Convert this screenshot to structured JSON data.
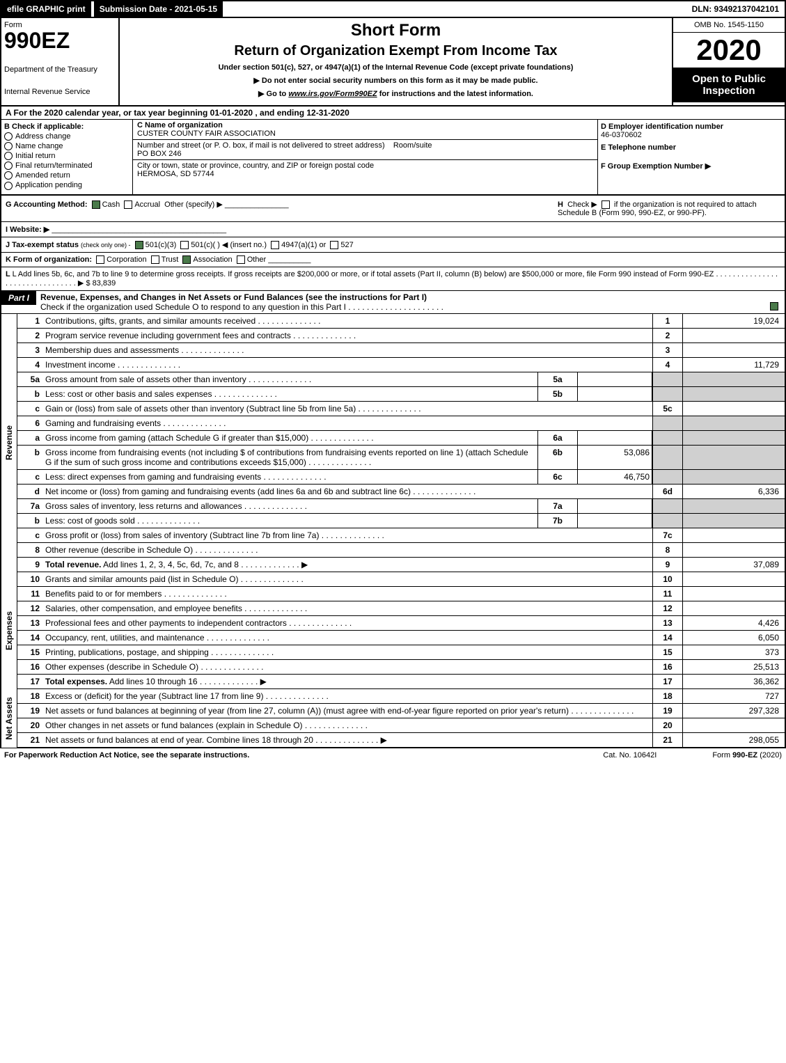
{
  "topbar": {
    "efile": "efile GRAPHIC print",
    "submission": "Submission Date - 2021-05-15",
    "dln": "DLN: 93492137042101"
  },
  "header": {
    "form_label": "Form",
    "form_num": "990EZ",
    "dept": "Department of the Treasury",
    "irs": "Internal Revenue Service",
    "short": "Short Form",
    "title": "Return of Organization Exempt From Income Tax",
    "under": "Under section 501(c), 527, or 4947(a)(1) of the Internal Revenue Code (except private foundations)",
    "do_not": "▶ Do not enter social security numbers on this form as it may be made public.",
    "go_to_pre": "▶ Go to ",
    "go_to_link": "www.irs.gov/Form990EZ",
    "go_to_post": " for instructions and the latest information.",
    "omb": "OMB No. 1545-1150",
    "year": "2020",
    "open": "Open to Public Inspection"
  },
  "section_a": "A  For the 2020 calendar year, or tax year beginning 01-01-2020  , and ending 12-31-2020",
  "col_b": {
    "header": "B  Check if applicable:",
    "items": [
      "Address change",
      "Name change",
      "Initial return",
      "Final return/terminated",
      "Amended return",
      "Application pending"
    ]
  },
  "org": {
    "c_label": "C Name of organization",
    "c_name": "CUSTER COUNTY FAIR ASSOCIATION",
    "addr_label": "Number and street (or P. O. box, if mail is not delivered to street address)",
    "room": "Room/suite",
    "addr": "PO BOX 246",
    "city_label": "City or town, state or province, country, and ZIP or foreign postal code",
    "city": "HERMOSA, SD  57744"
  },
  "col_d": {
    "d_label": "D Employer identification number",
    "ein": "46-0370602",
    "e_label": "E Telephone number",
    "f_label": "F Group Exemption Number   ▶"
  },
  "g": {
    "label": "G Accounting Method:",
    "cash": "Cash",
    "accrual": "Accrual",
    "other": "Other (specify) ▶"
  },
  "h": {
    "label": "H",
    "text": "Check ▶",
    "rest": "if the organization is not required to attach Schedule B (Form 990, 990-EZ, or 990-PF)."
  },
  "i": {
    "label": "I Website: ▶"
  },
  "j": {
    "label": "J Tax-exempt status",
    "rest": "(check only one) -",
    "c3": "501(c)(3)",
    "c": "501(c)(  )",
    "insert": "◀ (insert no.)",
    "a": "4947(a)(1) or",
    "n527": "527"
  },
  "k": {
    "label": "K Form of organization:",
    "corp": "Corporation",
    "trust": "Trust",
    "assoc": "Association",
    "other": "Other"
  },
  "l": {
    "text": "L Add lines 5b, 6c, and 7b to line 9 to determine gross receipts. If gross receipts are $200,000 or more, or if total assets (Part II, column (B) below) are $500,000 or more, file Form 990 instead of Form 990-EZ",
    "arrow": "▶ $ 83,839"
  },
  "part1": {
    "label": "Part I",
    "title": "Revenue, Expenses, and Changes in Net Assets or Fund Balances (see the instructions for Part I)",
    "check": "Check if the organization used Schedule O to respond to any question in this Part I"
  },
  "vtabs": {
    "rev": "Revenue",
    "exp": "Expenses",
    "net": "Net Assets"
  },
  "lines": [
    {
      "n": "1",
      "d": "Contributions, gifts, grants, and similar amounts received",
      "box": "1",
      "v": "19,024"
    },
    {
      "n": "2",
      "d": "Program service revenue including government fees and contracts",
      "box": "2",
      "v": ""
    },
    {
      "n": "3",
      "d": "Membership dues and assessments",
      "box": "3",
      "v": ""
    },
    {
      "n": "4",
      "d": "Investment income",
      "box": "4",
      "v": "11,729"
    },
    {
      "n": "5a",
      "d": "Gross amount from sale of assets other than inventory",
      "sb": "5a",
      "sv": "",
      "shaded": true
    },
    {
      "n": "b",
      "d": "Less: cost or other basis and sales expenses",
      "sb": "5b",
      "sv": "",
      "shaded": true
    },
    {
      "n": "c",
      "d": "Gain or (loss) from sale of assets other than inventory (Subtract line 5b from line 5a)",
      "box": "5c",
      "v": ""
    },
    {
      "n": "6",
      "d": "Gaming and fundraising events",
      "shaded": true,
      "nobox": true
    },
    {
      "n": "a",
      "d": "Gross income from gaming (attach Schedule G if greater than $15,000)",
      "sb": "6a",
      "sv": "",
      "shaded": true
    },
    {
      "n": "b",
      "d": "Gross income from fundraising events (not including $                        of contributions from fundraising events reported on line 1) (attach Schedule G if the sum of such gross income and contributions exceeds $15,000)",
      "sb": "6b",
      "sv": "53,086",
      "shaded": true
    },
    {
      "n": "c",
      "d": "Less: direct expenses from gaming and fundraising events",
      "sb": "6c",
      "sv": "46,750",
      "shaded": true
    },
    {
      "n": "d",
      "d": "Net income or (loss) from gaming and fundraising events (add lines 6a and 6b and subtract line 6c)",
      "box": "6d",
      "v": "6,336"
    },
    {
      "n": "7a",
      "d": "Gross sales of inventory, less returns and allowances",
      "sb": "7a",
      "sv": "",
      "shaded": true
    },
    {
      "n": "b",
      "d": "Less: cost of goods sold",
      "sb": "7b",
      "sv": "",
      "shaded": true
    },
    {
      "n": "c",
      "d": "Gross profit or (loss) from sales of inventory (Subtract line 7b from line 7a)",
      "box": "7c",
      "v": ""
    },
    {
      "n": "8",
      "d": "Other revenue (describe in Schedule O)",
      "box": "8",
      "v": ""
    },
    {
      "n": "9",
      "d": "Total revenue. Add lines 1, 2, 3, 4, 5c, 6d, 7c, and 8",
      "box": "9",
      "v": "37,089",
      "bold": true,
      "arrow": true
    }
  ],
  "exp_lines": [
    {
      "n": "10",
      "d": "Grants and similar amounts paid (list in Schedule O)",
      "box": "10",
      "v": ""
    },
    {
      "n": "11",
      "d": "Benefits paid to or for members",
      "box": "11",
      "v": ""
    },
    {
      "n": "12",
      "d": "Salaries, other compensation, and employee benefits",
      "box": "12",
      "v": ""
    },
    {
      "n": "13",
      "d": "Professional fees and other payments to independent contractors",
      "box": "13",
      "v": "4,426"
    },
    {
      "n": "14",
      "d": "Occupancy, rent, utilities, and maintenance",
      "box": "14",
      "v": "6,050"
    },
    {
      "n": "15",
      "d": "Printing, publications, postage, and shipping",
      "box": "15",
      "v": "373"
    },
    {
      "n": "16",
      "d": "Other expenses (describe in Schedule O)",
      "box": "16",
      "v": "25,513"
    },
    {
      "n": "17",
      "d": "Total expenses. Add lines 10 through 16",
      "box": "17",
      "v": "36,362",
      "bold": true,
      "arrow": true
    }
  ],
  "net_lines": [
    {
      "n": "18",
      "d": "Excess or (deficit) for the year (Subtract line 17 from line 9)",
      "box": "18",
      "v": "727"
    },
    {
      "n": "19",
      "d": "Net assets or fund balances at beginning of year (from line 27, column (A)) (must agree with end-of-year figure reported on prior year's return)",
      "box": "19",
      "v": "297,328"
    },
    {
      "n": "20",
      "d": "Other changes in net assets or fund balances (explain in Schedule O)",
      "box": "20",
      "v": ""
    },
    {
      "n": "21",
      "d": "Net assets or fund balances at end of year. Combine lines 18 through 20",
      "box": "21",
      "v": "298,055",
      "arrow": true
    }
  ],
  "footer": {
    "left": "For Paperwork Reduction Act Notice, see the separate instructions.",
    "mid": "Cat. No. 10642I",
    "right": "Form 990-EZ (2020)"
  }
}
